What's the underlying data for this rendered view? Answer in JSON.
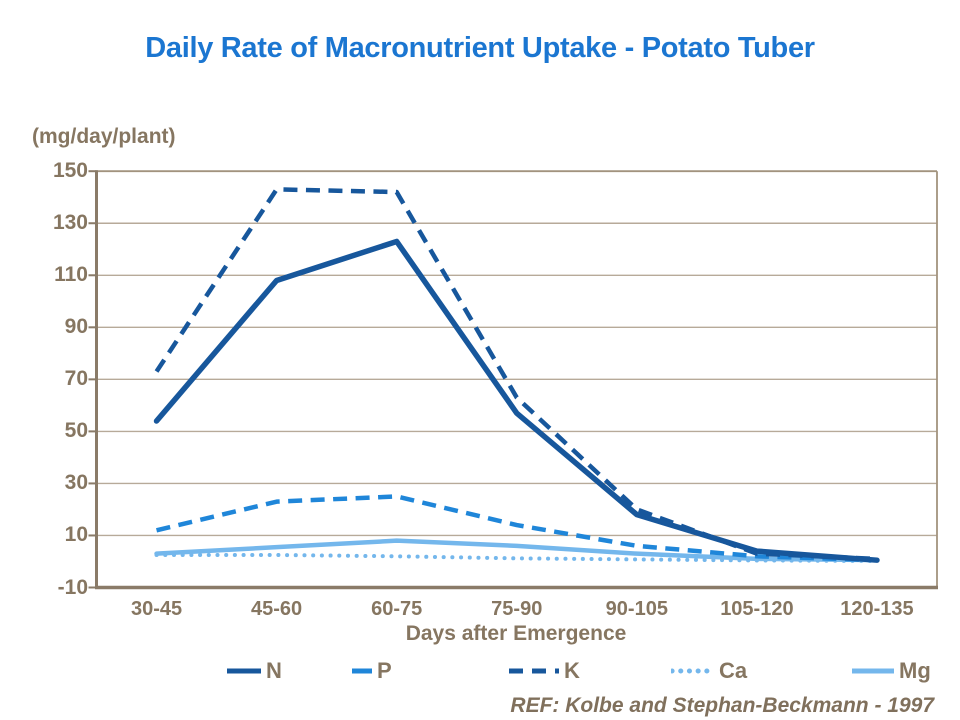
{
  "chart_data": {
    "type": "line",
    "title": "Daily Rate of Macronutrient Uptake - Potato Tuber",
    "unit_label": "(mg/day/plant)",
    "xlabel": "Days after Emergence",
    "categories": [
      "30-45",
      "45-60",
      "60-75",
      "75-90",
      "90-105",
      "105-120",
      "120-135"
    ],
    "ylim": [
      -10,
      150
    ],
    "yticks": [
      150,
      130,
      110,
      90,
      70,
      50,
      30,
      10,
      -10
    ],
    "grid": true,
    "legend_position": "bottom",
    "series": [
      {
        "name": "N",
        "color": "#17579C",
        "style": "solid",
        "width": 5.5,
        "values": [
          54,
          108,
          123,
          57,
          18,
          4,
          0.5
        ]
      },
      {
        "name": "P",
        "color": "#1F86D9",
        "style": "dashed",
        "width": 4.5,
        "values": [
          12,
          23,
          25,
          14,
          6,
          2,
          0.5
        ]
      },
      {
        "name": "K",
        "color": "#17579C",
        "style": "dashed",
        "width": 4.5,
        "values": [
          73,
          143,
          142,
          63,
          20,
          3,
          1
        ]
      },
      {
        "name": "Ca",
        "color": "#74B7EC",
        "style": "dotted",
        "width": 4,
        "values": [
          2.5,
          2.5,
          2,
          1.2,
          0.8,
          0.4,
          0.2
        ]
      },
      {
        "name": "Mg",
        "color": "#74B7EC",
        "style": "solid",
        "width": 4.5,
        "values": [
          3,
          5.5,
          8,
          6,
          3,
          1,
          0.5
        ]
      }
    ],
    "reference": "REF: Kolbe and Stephan-Beckmann - 1997"
  },
  "colors": {
    "title_blue": "#1B76D1",
    "text_brown": "#867661",
    "grid": "#B7AA99",
    "plot_border": "#A2937E",
    "axis": "#8A7B68",
    "series_dark_blue": "#17579C",
    "series_medium_blue": "#1F86D9",
    "series_light_blue": "#74B7EC"
  }
}
